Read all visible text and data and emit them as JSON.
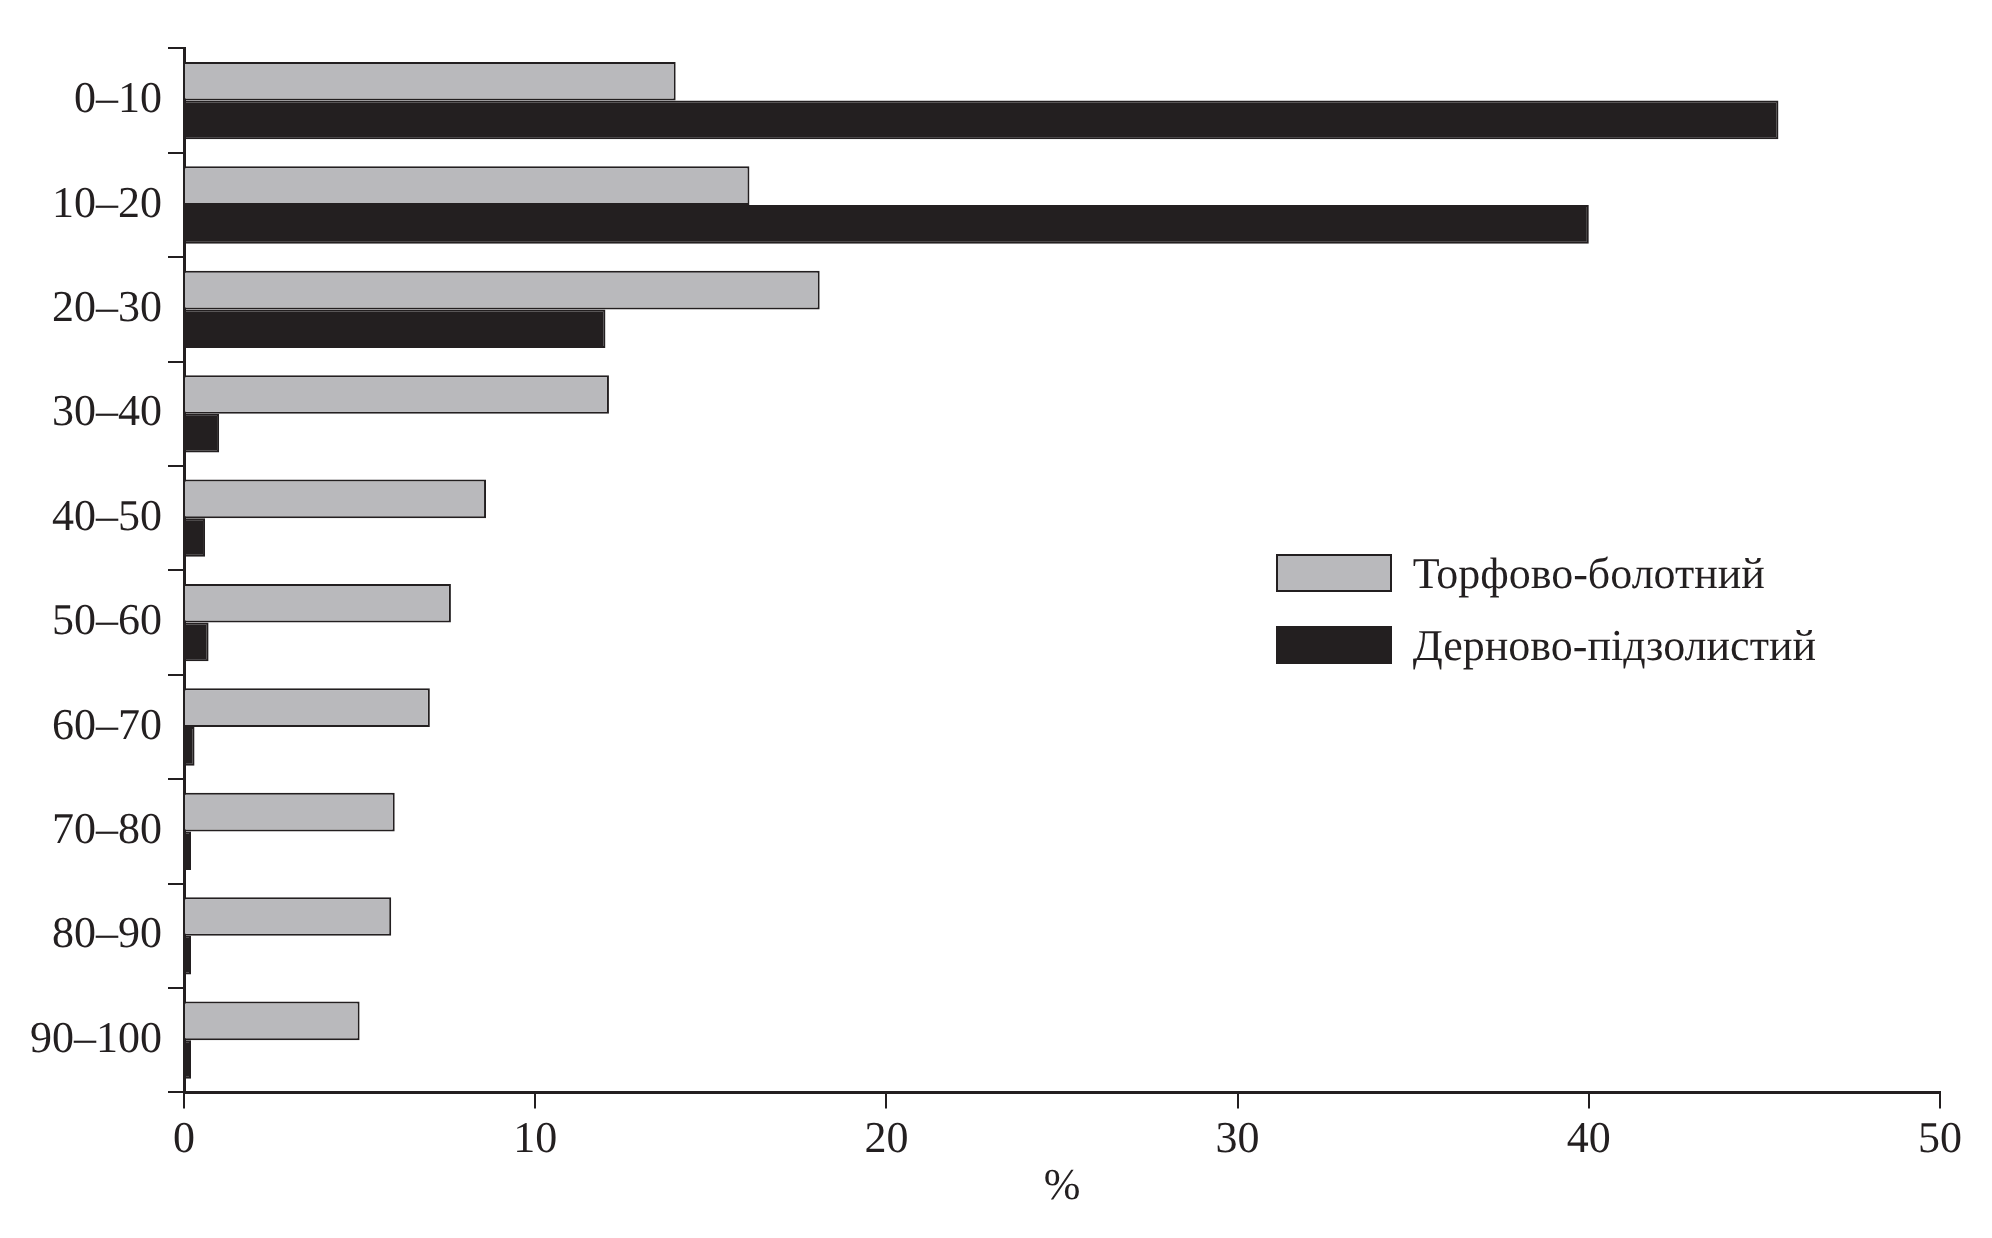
{
  "chart_data": {
    "type": "bar",
    "orientation": "horizontal",
    "xlabel": "%",
    "categories": [
      "0–10",
      "10–20",
      "20–30",
      "30–40",
      "40–50",
      "50–60",
      "60–70",
      "70–80",
      "80–90",
      "90–100"
    ],
    "series": [
      {
        "name": "Торфово-болотний",
        "color": "#b9b9bc",
        "values": [
          14,
          16.1,
          18.1,
          12.1,
          8.6,
          7.6,
          7,
          6,
          5.9,
          5
        ]
      },
      {
        "name": "Дерново-підзолистий",
        "color": "#231f20",
        "values": [
          45.4,
          40,
          12,
          1,
          0.6,
          0.7,
          0.3,
          0.2,
          0.2,
          0.2
        ]
      }
    ],
    "xlim": [
      0,
      50
    ],
    "xticks": [
      0,
      10,
      20,
      30,
      40,
      50
    ],
    "grid": false,
    "legend": "right"
  }
}
